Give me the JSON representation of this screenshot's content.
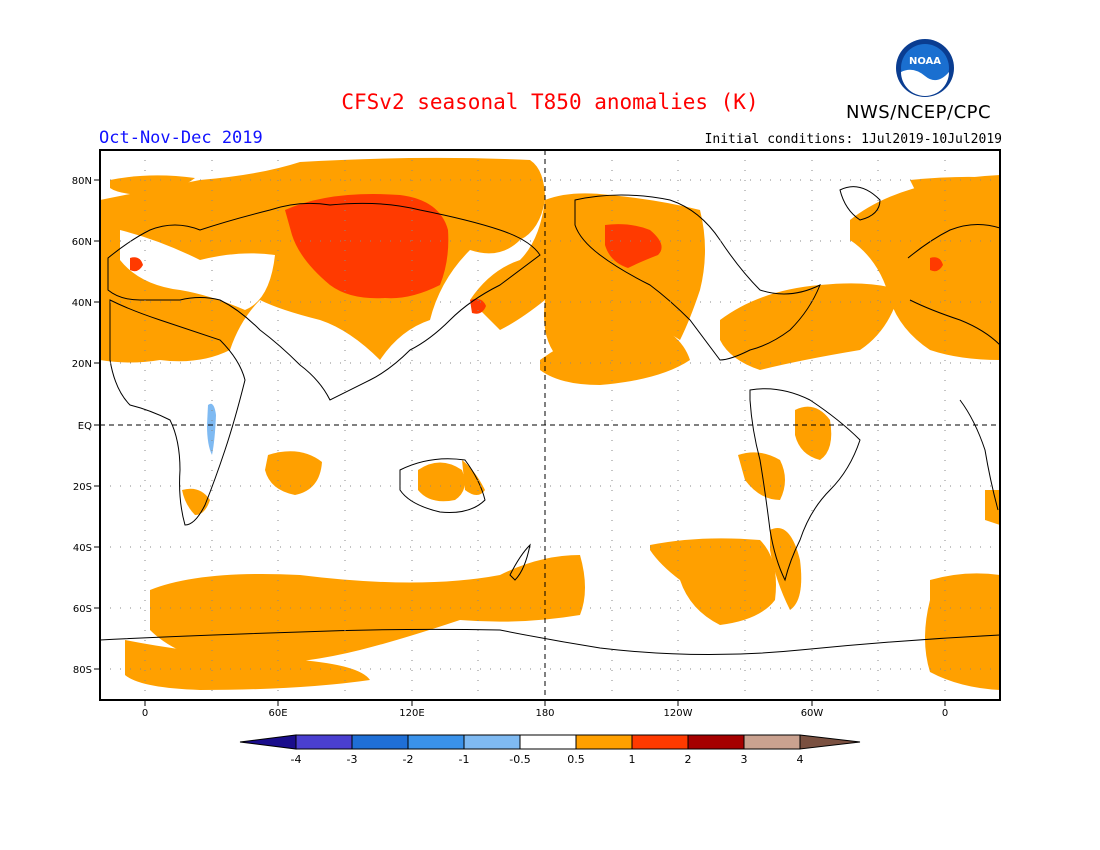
{
  "title": "CFSv2 seasonal T850 anomalies (K)",
  "season": "Oct-Nov-Dec 2019",
  "initial_conditions": "Initial conditions: 1Jul2019-10Jul2019",
  "agency": "NWS/NCEP/CPC",
  "logo_text": "NOAA",
  "lat_labels": [
    "80N",
    "60N",
    "40N",
    "20N",
    "EQ",
    "20S",
    "40S",
    "60S",
    "80S"
  ],
  "lon_labels": [
    "0",
    "60E",
    "120E",
    "180",
    "120W",
    "60W",
    "0"
  ],
  "colorbar": {
    "labels": [
      "-4",
      "-3",
      "-2",
      "-1",
      "-0.5",
      "0.5",
      "1",
      "2",
      "3",
      "4"
    ],
    "colors": [
      "#1a0d8c",
      "#4a3fd0",
      "#1f6fd6",
      "#3a92ea",
      "#7fbaf2",
      "#ffffff",
      "#ffa000",
      "#ff3a00",
      "#a50000",
      "#caa290",
      "#7a5040"
    ]
  },
  "colors": {
    "anom_0_5_to_1": "#ffa000",
    "anom_1_to_2": "#ff3a00",
    "anom_neg_0_5_to_neg_1": "#7fbaf2"
  }
}
